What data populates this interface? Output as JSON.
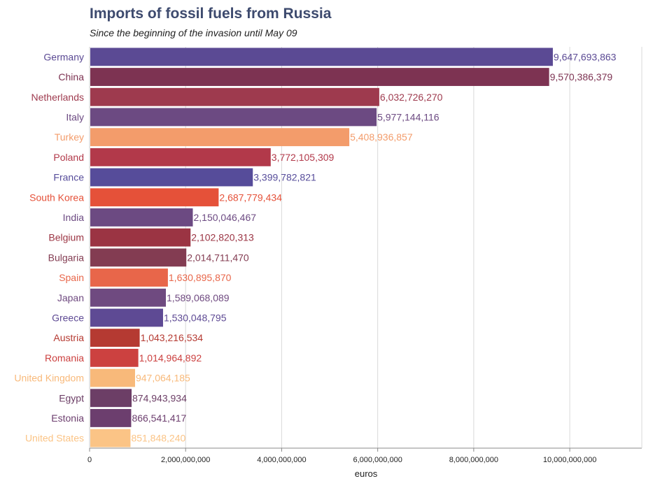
{
  "chart_data": {
    "type": "bar",
    "orientation": "horizontal",
    "title": "Imports of fossil fuels from Russia",
    "subtitle": "Since the beginning of the invasion until May 09",
    "xlabel": "euros",
    "ylabel": "",
    "xlim": [
      0,
      11500000000
    ],
    "grid": true,
    "x_ticks": [
      {
        "value": 0,
        "label": "0"
      },
      {
        "value": 2000000000,
        "label": "2,000,000,000"
      },
      {
        "value": 4000000000,
        "label": "4,000,000,000"
      },
      {
        "value": 6000000000,
        "label": "6,000,000,000"
      },
      {
        "value": 8000000000,
        "label": "8,000,000,000"
      },
      {
        "value": 10000000000,
        "label": "10,000,000,000"
      }
    ],
    "bars": [
      {
        "category": "Germany",
        "value": 9647693863,
        "label": "9,647,693,863",
        "color": "#5b4a94"
      },
      {
        "category": "China",
        "value": 9570386379,
        "label": "9,570,386,379",
        "color": "#7d3352"
      },
      {
        "category": "Netherlands",
        "value": 6032726270,
        "label": "6,032,726,270",
        "color": "#9e3a4e"
      },
      {
        "category": "Italy",
        "value": 5977144116,
        "label": "5,977,144,116",
        "color": "#6c4a82"
      },
      {
        "category": "Turkey",
        "value": 5408936857,
        "label": "5,408,936,857",
        "color": "#f39c6b"
      },
      {
        "category": "Poland",
        "value": 3772105309,
        "label": "3,772,105,309",
        "color": "#b2394a"
      },
      {
        "category": "France",
        "value": 3399782821,
        "label": "3,399,782,821",
        "color": "#564c9a"
      },
      {
        "category": "South Korea",
        "value": 2687779434,
        "label": "2,687,779,434",
        "color": "#e55139"
      },
      {
        "category": "India",
        "value": 2150046467,
        "label": "2,150,046,467",
        "color": "#6c4a82"
      },
      {
        "category": "Belgium",
        "value": 2102820313,
        "label": "2,102,820,313",
        "color": "#9b3443"
      },
      {
        "category": "Bulgaria",
        "value": 2014711470,
        "label": "2,014,711,470",
        "color": "#833c52"
      },
      {
        "category": "Spain",
        "value": 1630895870,
        "label": "1,630,895,870",
        "color": "#e8664a"
      },
      {
        "category": "Japan",
        "value": 1589068089,
        "label": "1,589,068,089",
        "color": "#6f4a80"
      },
      {
        "category": "Greece",
        "value": 1530048795,
        "label": "1,530,048,795",
        "color": "#5e4a94"
      },
      {
        "category": "Austria",
        "value": 1043216534,
        "label": "1,043,216,534",
        "color": "#b53a32"
      },
      {
        "category": "Romania",
        "value": 1014964892,
        "label": "1,014,964,892",
        "color": "#cc4140"
      },
      {
        "category": "United Kingdom",
        "value": 947064185,
        "label": "947,064,185",
        "color": "#f8b97a"
      },
      {
        "category": "Egypt",
        "value": 874943934,
        "label": "874,943,934",
        "color": "#6c3e66"
      },
      {
        "category": "Estonia",
        "value": 866541417,
        "label": "866,541,417",
        "color": "#6c3e6e"
      },
      {
        "category": "United States",
        "value": 851848240,
        "label": "851,848,240",
        "color": "#fbc486"
      }
    ]
  }
}
